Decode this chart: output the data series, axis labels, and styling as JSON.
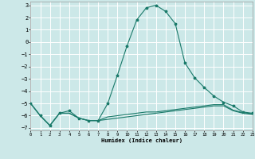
{
  "xlabel": "Humidex (Indice chaleur)",
  "bg_color": "#cce8e8",
  "grid_color": "#ffffff",
  "line_color": "#1a7a6a",
  "xlim": [
    0,
    23
  ],
  "ylim": [
    -7.2,
    3.3
  ],
  "yticks": [
    3,
    2,
    1,
    0,
    -1,
    -2,
    -3,
    -4,
    -5,
    -6,
    -7
  ],
  "xticks": [
    0,
    1,
    2,
    3,
    4,
    5,
    6,
    7,
    8,
    9,
    10,
    11,
    12,
    13,
    14,
    15,
    16,
    17,
    18,
    19,
    20,
    21,
    22,
    23
  ],
  "line1_x": [
    0,
    1,
    2,
    3,
    4,
    5,
    6,
    7,
    8,
    9,
    10,
    11,
    12,
    13,
    14,
    15,
    16,
    17,
    18,
    19,
    20,
    21,
    22,
    23
  ],
  "line1_y": [
    -5.0,
    -6.0,
    -6.8,
    -5.8,
    -5.6,
    -6.2,
    -6.4,
    -6.4,
    -5.0,
    -2.7,
    -0.3,
    1.8,
    2.8,
    3.0,
    2.5,
    1.5,
    -1.7,
    -2.9,
    -3.7,
    -4.4,
    -4.9,
    -5.2,
    -5.7,
    -5.8
  ],
  "line2_x": [
    0,
    1,
    2,
    3,
    4,
    5,
    6,
    7,
    8,
    9,
    10,
    11,
    12,
    13,
    14,
    15,
    16,
    17,
    18,
    19,
    20,
    21,
    22,
    23
  ],
  "line2_y": [
    -5.0,
    -6.0,
    -6.8,
    -5.8,
    -5.8,
    -6.2,
    -6.4,
    -6.4,
    -6.3,
    -6.2,
    -6.1,
    -6.0,
    -5.9,
    -5.8,
    -5.7,
    -5.6,
    -5.5,
    -5.4,
    -5.3,
    -5.2,
    -5.2,
    -5.6,
    -5.8,
    -5.9
  ],
  "line3_x": [
    0,
    1,
    2,
    3,
    4,
    5,
    6,
    7,
    8,
    9,
    10,
    11,
    12,
    13,
    14,
    15,
    16,
    17,
    18,
    19,
    20,
    21,
    22,
    23
  ],
  "line3_y": [
    -5.0,
    -6.0,
    -6.8,
    -5.8,
    -5.8,
    -6.2,
    -6.4,
    -6.4,
    -6.1,
    -6.0,
    -5.9,
    -5.8,
    -5.7,
    -5.7,
    -5.6,
    -5.5,
    -5.4,
    -5.3,
    -5.2,
    -5.1,
    -5.1,
    -5.55,
    -5.75,
    -5.85
  ]
}
